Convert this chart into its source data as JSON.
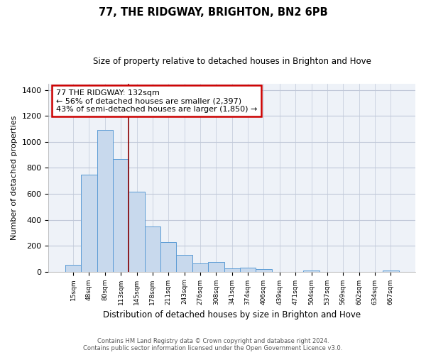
{
  "title": "77, THE RIDGWAY, BRIGHTON, BN2 6PB",
  "subtitle": "Size of property relative to detached houses in Brighton and Hove",
  "xlabel": "Distribution of detached houses by size in Brighton and Hove",
  "ylabel": "Number of detached properties",
  "categories": [
    "15sqm",
    "48sqm",
    "80sqm",
    "113sqm",
    "145sqm",
    "178sqm",
    "211sqm",
    "243sqm",
    "276sqm",
    "308sqm",
    "341sqm",
    "374sqm",
    "406sqm",
    "439sqm",
    "471sqm",
    "504sqm",
    "537sqm",
    "569sqm",
    "602sqm",
    "634sqm",
    "667sqm"
  ],
  "values": [
    50,
    750,
    1095,
    870,
    615,
    350,
    228,
    130,
    65,
    72,
    25,
    30,
    20,
    0,
    0,
    10,
    0,
    0,
    0,
    0,
    10
  ],
  "bar_color": "#c8d9ed",
  "bar_edge_color": "#5b9bd5",
  "annotation_box_text": "77 THE RIDGWAY: 132sqm\n← 56% of detached houses are smaller (2,397)\n43% of semi-detached houses are larger (1,850) →",
  "annotation_box_color": "#ffffff",
  "annotation_box_edge_color": "#cc0000",
  "property_line_x": 3.5,
  "ylim": [
    0,
    1450
  ],
  "yticks": [
    0,
    200,
    400,
    600,
    800,
    1000,
    1200,
    1400
  ],
  "footer_line1": "Contains HM Land Registry data © Crown copyright and database right 2024.",
  "footer_line2": "Contains public sector information licensed under the Open Government Licence v3.0.",
  "bg_color": "#ffffff",
  "plot_bg_color": "#eef2f8",
  "grid_color": "#c0c8d8"
}
